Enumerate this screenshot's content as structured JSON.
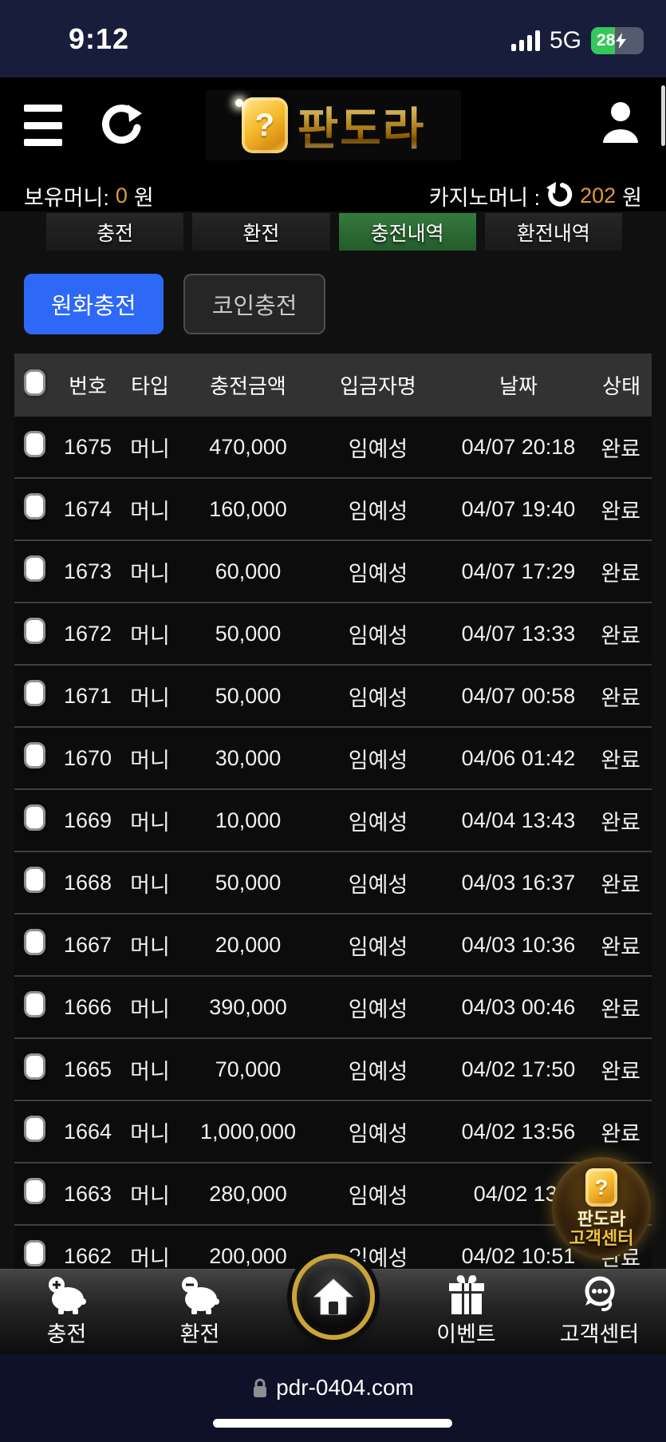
{
  "status_bar": {
    "time": "9:12",
    "network": "5G",
    "battery_percent": "28"
  },
  "header": {
    "logo_text": "판도라",
    "logo_question_mark": "?"
  },
  "balance": {
    "own_label": "보유머니:",
    "own_amount": "0",
    "own_currency": "원",
    "casino_label": "카지노머니 :",
    "casino_amount": "202",
    "casino_currency": "원"
  },
  "tabs": [
    {
      "label": "충전",
      "active": false
    },
    {
      "label": "환전",
      "active": false
    },
    {
      "label": "충전내역",
      "active": true
    },
    {
      "label": "환전내역",
      "active": false
    }
  ],
  "subtabs": [
    {
      "label": "원화충전",
      "active": true
    },
    {
      "label": "코인충전",
      "active": false
    }
  ],
  "table": {
    "headers": [
      "번호",
      "타입",
      "충전금액",
      "입금자명",
      "날짜",
      "상태"
    ],
    "rows": [
      [
        "1675",
        "머니",
        "470,000",
        "임예성",
        "04/07 20:18",
        "완료"
      ],
      [
        "1674",
        "머니",
        "160,000",
        "임예성",
        "04/07 19:40",
        "완료"
      ],
      [
        "1673",
        "머니",
        "60,000",
        "임예성",
        "04/07 17:29",
        "완료"
      ],
      [
        "1672",
        "머니",
        "50,000",
        "임예성",
        "04/07 13:33",
        "완료"
      ],
      [
        "1671",
        "머니",
        "50,000",
        "임예성",
        "04/07 00:58",
        "완료"
      ],
      [
        "1670",
        "머니",
        "30,000",
        "임예성",
        "04/06 01:42",
        "완료"
      ],
      [
        "1669",
        "머니",
        "10,000",
        "임예성",
        "04/04 13:43",
        "완료"
      ],
      [
        "1668",
        "머니",
        "50,000",
        "임예성",
        "04/03 16:37",
        "완료"
      ],
      [
        "1667",
        "머니",
        "20,000",
        "임예성",
        "04/03 10:36",
        "완료"
      ],
      [
        "1666",
        "머니",
        "390,000",
        "임예성",
        "04/03 00:46",
        "완료"
      ],
      [
        "1665",
        "머니",
        "70,000",
        "임예성",
        "04/02 17:50",
        "완료"
      ],
      [
        "1664",
        "머니",
        "1,000,000",
        "임예성",
        "04/02 13:56",
        "완료"
      ],
      [
        "1663",
        "머니",
        "280,000",
        "임예성",
        "04/02 13:",
        "완료"
      ],
      [
        "1662",
        "머니",
        "200,000",
        "임예성",
        "04/02 10:51",
        "완료"
      ]
    ]
  },
  "floating_badge": {
    "question_mark": "?",
    "line1": "판도라",
    "line2": "고객센터"
  },
  "bottom_nav": [
    {
      "label": "충전",
      "icon": "piggy-plus-icon"
    },
    {
      "label": "환전",
      "icon": "piggy-minus-icon"
    },
    {
      "label": "",
      "icon": "home-icon"
    },
    {
      "label": "이벤트",
      "icon": "gift-icon"
    },
    {
      "label": "고객센터",
      "icon": "headset-chat-icon"
    }
  ],
  "browser": {
    "url": "pdr-0404.com"
  },
  "colors": {
    "accent_orange": "#e09a35",
    "active_green": "#2d6e35",
    "primary_blue": "#2d68f7",
    "gold": "#c9a437",
    "status_navy": "#191d3c",
    "browser_navy": "#0f1129"
  }
}
